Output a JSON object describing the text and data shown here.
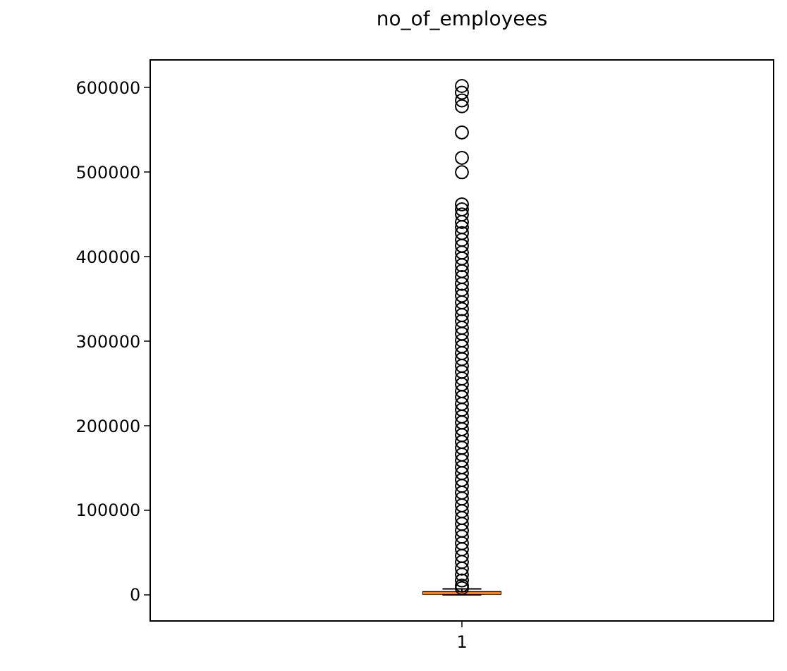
{
  "chart_data": {
    "type": "box",
    "title": "no_of_employees",
    "categories": [
      "1"
    ],
    "series": [
      {
        "color": "#000000",
        "boxes": [
          {
            "low": 10,
            "q1": 1000,
            "median": 2000,
            "q3": 3500,
            "high": 7000,
            "outliers": [
              602000,
              594000,
              585000,
              578000,
              547000,
              517000,
              500000,
              462000,
              456000,
              450000,
              441000,
              435000,
              428000,
              420000,
              413000,
              405000,
              398000,
              390000,
              383000,
              376000,
              368000,
              361000,
              354000,
              346000,
              338000,
              331000,
              324000,
              316000,
              309000,
              301000,
              294000,
              286000,
              279000,
              271000,
              264000,
              256000,
              249000,
              241000,
              234000,
              226000,
              219000,
              211000,
              204000,
              196000,
              189000,
              181000,
              174000,
              166000,
              159000,
              151000,
              144000,
              136000,
              129000,
              121000,
              114000,
              106000,
              99000,
              91000,
              84000,
              76000,
              69000,
              61000,
              54000,
              46000,
              39000,
              31000,
              24000,
              17000,
              11000,
              8000
            ]
          }
        ]
      }
    ],
    "ylim": [
      -30000,
      632000
    ],
    "yticks": [
      0,
      100000,
      200000,
      300000,
      400000,
      500000,
      600000
    ],
    "grid": false,
    "marker": "circle"
  }
}
